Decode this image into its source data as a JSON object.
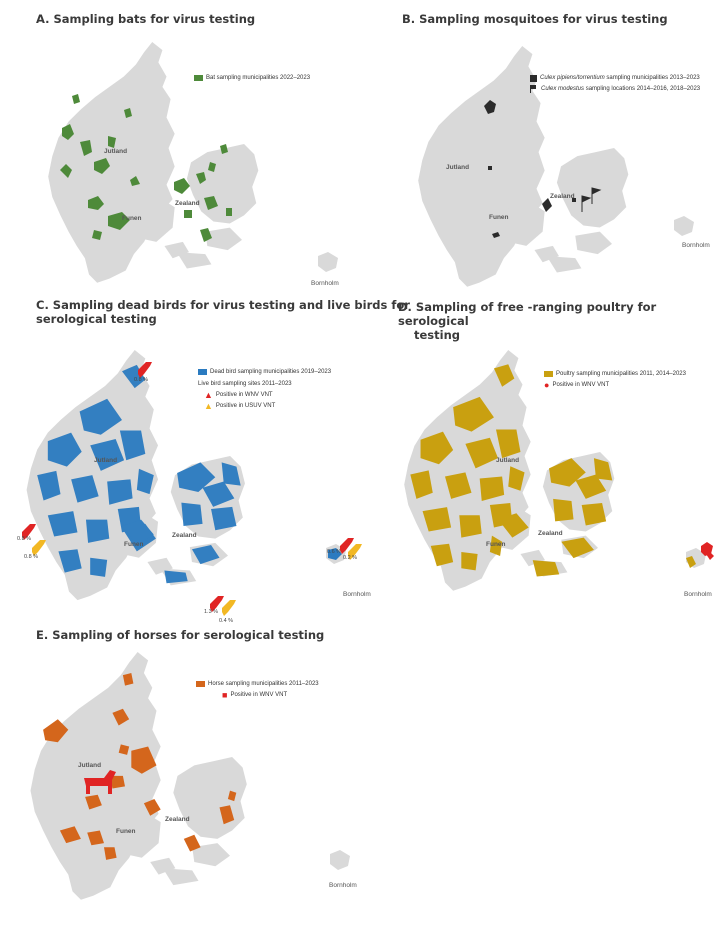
{
  "colors": {
    "land": "#d9d9d9",
    "bat": "#4e8a3a",
    "mosquito": "#2b2b2b",
    "dead_bird": "#2b7bc0",
    "wnv_positive": "#e02424",
    "usuv_positive": "#f2b824",
    "poultry": "#c9a010",
    "horse": "#d4661c"
  },
  "panels": {
    "a": {
      "title": "A. Sampling bats for virus testing",
      "legend": "Bat sampling municipalities 2022–2023",
      "places": {
        "jutland": "Jutland",
        "funen": "Funen",
        "zealand": "Zealand",
        "bornholm": "Bornholm"
      }
    },
    "b": {
      "title": "B. Sampling mosquitoes for virus testing",
      "legend_1_italic": "Culex pipiens/torrentium",
      "legend_1_rest": " sampling municipalities 2013–2023",
      "legend_2_italic": "Culex modestus",
      "legend_2_rest": " sampling locations 2014–2016, 2018–2023",
      "places": {
        "jutland": "Jutland",
        "funen": "Funen",
        "zealand": "Zealand",
        "bornholm": "Bornholm"
      }
    },
    "c": {
      "title_line1": "C. Sampling dead birds for virus testing and live birds for",
      "title_line2": "serological testing",
      "legend_dead": "Dead bird sampling municipalities 2019–2023",
      "legend_live": "Live bird sampling sites 2011–2023",
      "legend_wnv": "Positive in WNV VNT",
      "legend_usuv": "Positive in USUV VNT",
      "places": {
        "jutland": "Jutland",
        "funen": "Funen",
        "zealand": "Zealand",
        "bornholm": "Bornholm"
      },
      "sites": [
        {
          "wnv": "0.8 %",
          "usuv": null
        },
        {
          "wnv": "0.8 %",
          "usuv": "0.8 %"
        },
        {
          "wnv": "1.3 %",
          "usuv": "0.4 %"
        },
        {
          "wnv": "0.6 %",
          "usuv": "0.2 %"
        }
      ]
    },
    "d": {
      "title_line1": "D. Sampling of free -ranging poultry for serological",
      "title_line2": "testing",
      "legend_poultry": "Poultry sampling municipalities 2011, 2014–2023",
      "legend_wnv": "Positive in WNV VNT",
      "places": {
        "jutland": "Jutland",
        "funen": "Funen",
        "zealand": "Zealand",
        "bornholm": "Bornholm"
      }
    },
    "e": {
      "title": "E. Sampling of horses for serological testing",
      "legend_horse": "Horse sampling municipalities 2011–2023",
      "legend_wnv": "Positive in WNV VNT",
      "places": {
        "jutland": "Jutland",
        "funen": "Funen",
        "zealand": "Zealand",
        "bornholm": "Bornholm"
      }
    }
  }
}
